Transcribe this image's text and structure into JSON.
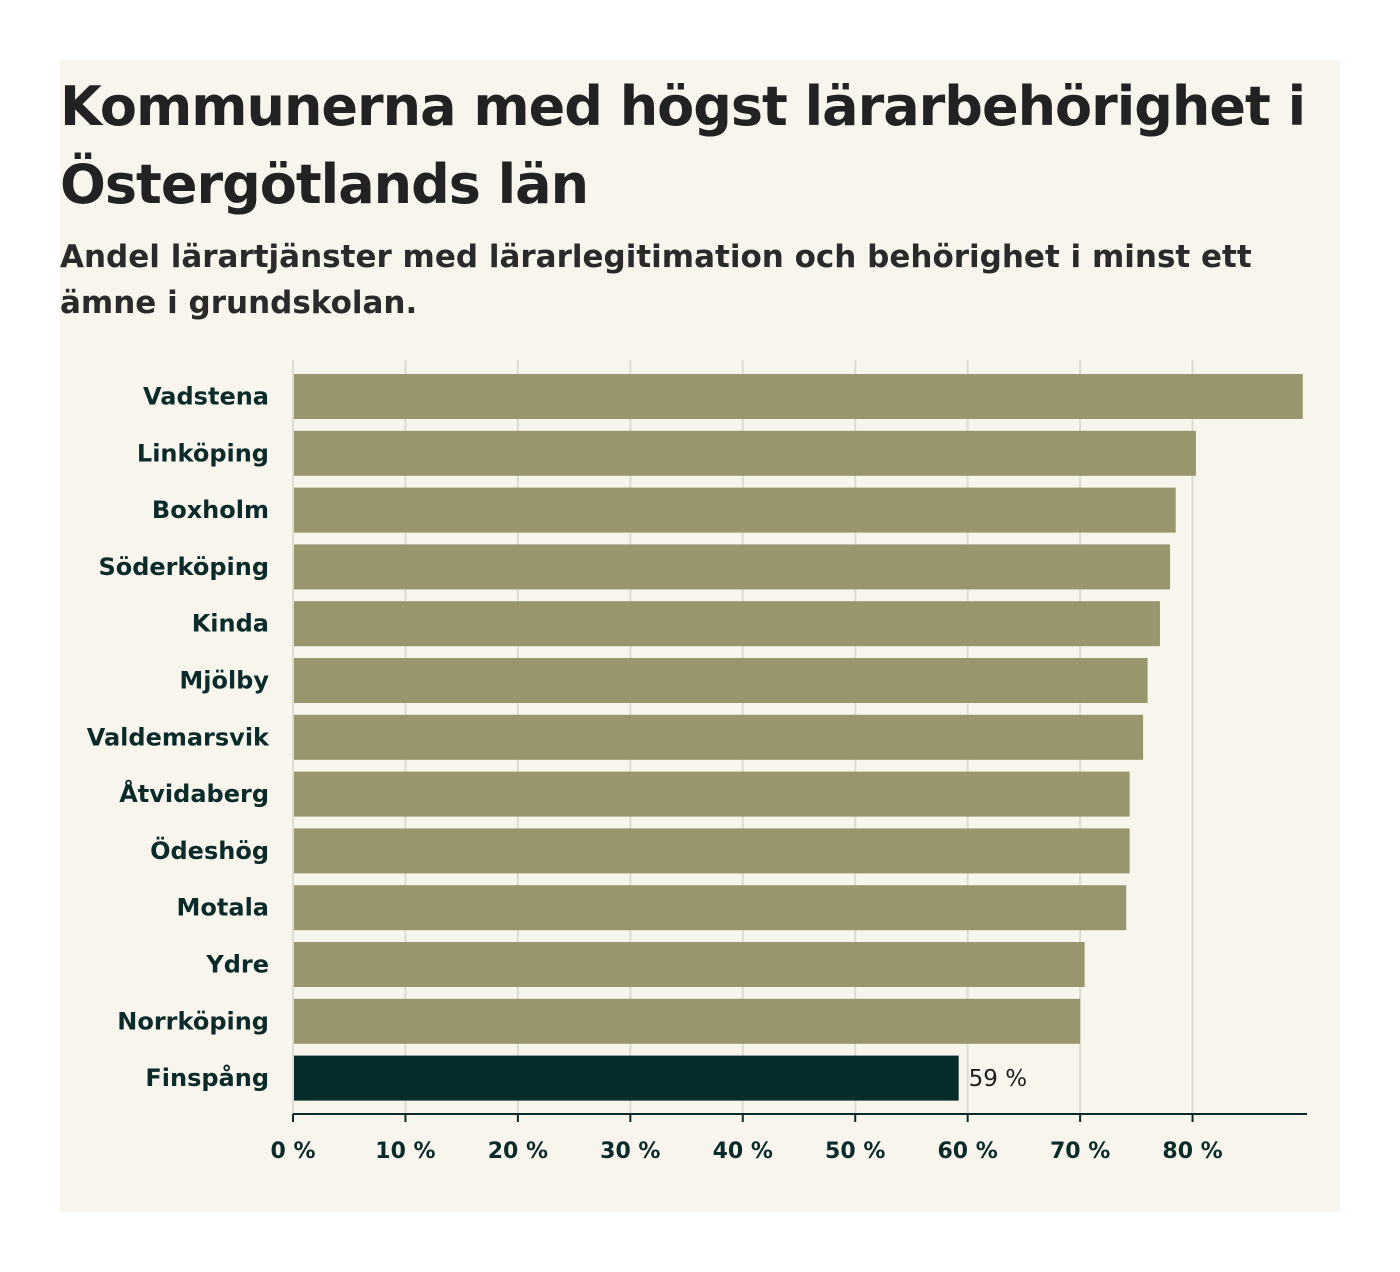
{
  "chart_data": {
    "type": "bar",
    "orientation": "horizontal",
    "title": "Kommunerna med högst lärarbehörighet i Östergötlands län",
    "subtitle": "Andel lärartjänster med lärarlegitimation och behörighet i minst ett ämne i grundskolan.",
    "categories": [
      "Vadstena",
      "Linköping",
      "Boxholm",
      "Söderköping",
      "Kinda",
      "Mjölby",
      "Valdemarsvik",
      "Åtvidaberg",
      "Ödeshög",
      "Motala",
      "Ydre",
      "Norrköping",
      "Finspång"
    ],
    "values": [
      89.8,
      80.3,
      78.5,
      78.0,
      77.1,
      76.0,
      75.6,
      74.4,
      74.4,
      74.1,
      70.4,
      70.0,
      59.2
    ],
    "highlight_index": 12,
    "data_labels": [
      {
        "index": 12,
        "text": "59 %"
      }
    ],
    "xlim": [
      0,
      90
    ],
    "xticks": [
      0,
      10,
      20,
      30,
      40,
      50,
      60,
      70,
      80
    ],
    "xtick_labels": [
      "0 %",
      "10 %",
      "20 %",
      "30 %",
      "40 %",
      "50 %",
      "60 %",
      "70 %",
      "80 %"
    ],
    "grid": true,
    "colors": {
      "bar": "#99956c",
      "highlight": "#062c2c",
      "grid": "#dedbd2",
      "axis": "#0b2b2b"
    }
  }
}
